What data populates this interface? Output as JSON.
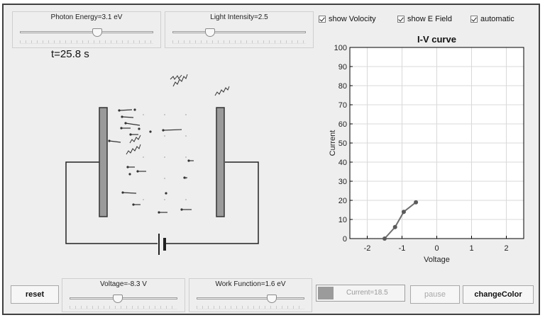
{
  "controls": {
    "photon_energy": {
      "label": "Photon Energy=3.1 eV",
      "position": 0.58
    },
    "light_intensity": {
      "label": "Light Intensity=2.5",
      "position": 0.28
    },
    "voltage": {
      "label": "Voltage=-8.3 V",
      "position": 0.45
    },
    "work_function": {
      "label": "Work Function=1.6 eV",
      "position": 0.7
    }
  },
  "time_label": "t=25.8 s",
  "checkboxes": [
    {
      "label": "show Volocity",
      "checked": true
    },
    {
      "label": "show E Field",
      "checked": true
    },
    {
      "label": "automatic",
      "checked": true
    }
  ],
  "buttons": {
    "reset": "reset",
    "pause": "pause",
    "change_color": "changeColor"
  },
  "current_display": "Current=18.5",
  "colors": {
    "panel": "#eeeeee",
    "plate": "#9a9a9a",
    "wire": "#222222",
    "curve_line": "#707070",
    "curve_point": "#5a5a5a"
  },
  "chart_data": {
    "type": "line",
    "title": "I-V curve",
    "xlabel": "Voltage",
    "ylabel": "Current",
    "xlim": [
      -2.5,
      2.5
    ],
    "ylim": [
      0,
      100
    ],
    "xticks": [
      -2,
      -1,
      0,
      1,
      2
    ],
    "yticks": [
      0,
      10,
      20,
      30,
      40,
      50,
      60,
      70,
      80,
      90,
      100
    ],
    "grid": true,
    "series": [
      {
        "x": [
          -1.5,
          -1.2,
          -0.95,
          -0.6
        ],
        "y": [
          0,
          6,
          14,
          19
        ]
      }
    ]
  }
}
